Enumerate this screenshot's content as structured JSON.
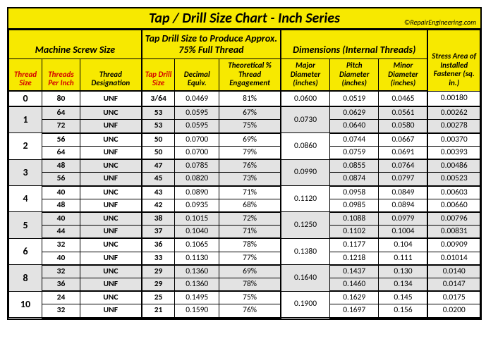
{
  "title": "Tap / Drill Size Chart - Inch Series",
  "copyright": "©RepairEngineering.com",
  "group_headers": {
    "machine_screw": "Machine Screw Size",
    "tap_drill": "Tap Drill Size to Produce Approx. 75% Full Thread",
    "dimensions": "Dimensions (Internal Threads)",
    "stress_area": "Stress Area of Installed Fastener (sq. in.)"
  },
  "col_headers": {
    "thread_size": "Thread Size",
    "tpi": "Threads Per Inch",
    "thread_desig": "Thread Designation",
    "tap_drill_size": "Tap Drill Size",
    "decimal_equiv": "Decimal Equiv.",
    "engagement": "Theoretical % Thread Engagement",
    "major_dia": "Major Diameter (inches)",
    "pitch_dia": "Pitch Diameter (inches)",
    "minor_dia": "Minor Diameter (inches)"
  },
  "groups": [
    {
      "thread_size": "0",
      "shade": false,
      "major_dia": "0.0600",
      "rows": [
        {
          "tpi": "80",
          "desig": "UNF",
          "drill": "3/64",
          "dec": "0.0469",
          "eng": "81%",
          "pitch": "0.0519",
          "minor": "0.0465",
          "stress": "0.00180"
        }
      ]
    },
    {
      "thread_size": "1",
      "shade": true,
      "major_dia": "0.0730",
      "rows": [
        {
          "tpi": "64",
          "desig": "UNC",
          "drill": "53",
          "dec": "0.0595",
          "eng": "67%",
          "pitch": "0.0629",
          "minor": "0.0561",
          "stress": "0.00262"
        },
        {
          "tpi": "72",
          "desig": "UNF",
          "drill": "53",
          "dec": "0.0595",
          "eng": "75%",
          "pitch": "0.0640",
          "minor": "0.0580",
          "stress": "0.00278"
        }
      ]
    },
    {
      "thread_size": "2",
      "shade": false,
      "major_dia": "0.0860",
      "rows": [
        {
          "tpi": "56",
          "desig": "UNC",
          "drill": "50",
          "dec": "0.0700",
          "eng": "69%",
          "pitch": "0.0744",
          "minor": "0.0667",
          "stress": "0.00370"
        },
        {
          "tpi": "64",
          "desig": "UNF",
          "drill": "50",
          "dec": "0.0700",
          "eng": "79%",
          "pitch": "0.0759",
          "minor": "0.0691",
          "stress": "0.00393"
        }
      ]
    },
    {
      "thread_size": "3",
      "shade": true,
      "major_dia": "0.0990",
      "rows": [
        {
          "tpi": "48",
          "desig": "UNC",
          "drill": "47",
          "dec": "0.0785",
          "eng": "76%",
          "pitch": "0.0855",
          "minor": "0.0764",
          "stress": "0.00486"
        },
        {
          "tpi": "56",
          "desig": "UNF",
          "drill": "45",
          "dec": "0.0820",
          "eng": "73%",
          "pitch": "0.0874",
          "minor": "0.0797",
          "stress": "0.00523"
        }
      ]
    },
    {
      "thread_size": "4",
      "shade": false,
      "major_dia": "0.1120",
      "rows": [
        {
          "tpi": "40",
          "desig": "UNC",
          "drill": "43",
          "dec": "0.0890",
          "eng": "71%",
          "pitch": "0.0958",
          "minor": "0.0849",
          "stress": "0.00603"
        },
        {
          "tpi": "48",
          "desig": "UNF",
          "drill": "42",
          "dec": "0.0935",
          "eng": "68%",
          "pitch": "0.0985",
          "minor": "0.0894",
          "stress": "0.00660"
        }
      ]
    },
    {
      "thread_size": "5",
      "shade": true,
      "major_dia": "0.1250",
      "rows": [
        {
          "tpi": "40",
          "desig": "UNC",
          "drill": "38",
          "dec": "0.1015",
          "eng": "72%",
          "pitch": "0.1088",
          "minor": "0.0979",
          "stress": "0.00796"
        },
        {
          "tpi": "44",
          "desig": "UNF",
          "drill": "37",
          "dec": "0.1040",
          "eng": "71%",
          "pitch": "0.1102",
          "minor": "0.1004",
          "stress": "0.00831"
        }
      ]
    },
    {
      "thread_size": "6",
      "shade": false,
      "major_dia": "0.1380",
      "rows": [
        {
          "tpi": "32",
          "desig": "UNC",
          "drill": "36",
          "dec": "0.1065",
          "eng": "78%",
          "pitch": "0.1177",
          "minor": "0.104",
          "stress": "0.00909"
        },
        {
          "tpi": "40",
          "desig": "UNF",
          "drill": "33",
          "dec": "0.1130",
          "eng": "77%",
          "pitch": "0.1218",
          "minor": "0.111",
          "stress": "0.01014"
        }
      ]
    },
    {
      "thread_size": "8",
      "shade": true,
      "major_dia": "0.1640",
      "rows": [
        {
          "tpi": "32",
          "desig": "UNC",
          "drill": "29",
          "dec": "0.1360",
          "eng": "69%",
          "pitch": "0.1437",
          "minor": "0.130",
          "stress": "0.0140"
        },
        {
          "tpi": "36",
          "desig": "UNF",
          "drill": "29",
          "dec": "0.1360",
          "eng": "78%",
          "pitch": "0.1460",
          "minor": "0.134",
          "stress": "0.0147"
        }
      ]
    },
    {
      "thread_size": "10",
      "shade": false,
      "major_dia": "0.1900",
      "rows": [
        {
          "tpi": "24",
          "desig": "UNC",
          "drill": "25",
          "dec": "0.1495",
          "eng": "75%",
          "pitch": "0.1629",
          "minor": "0.145",
          "stress": "0.0175"
        },
        {
          "tpi": "32",
          "desig": "UNF",
          "drill": "21",
          "dec": "0.1590",
          "eng": "76%",
          "pitch": "0.1697",
          "minor": "0.156",
          "stress": "0.0200"
        }
      ]
    }
  ],
  "colors": {
    "header_bg": "#f7e900",
    "shade_bg": "#e3e3e3",
    "accent": "#d40000",
    "border": "#000000"
  }
}
